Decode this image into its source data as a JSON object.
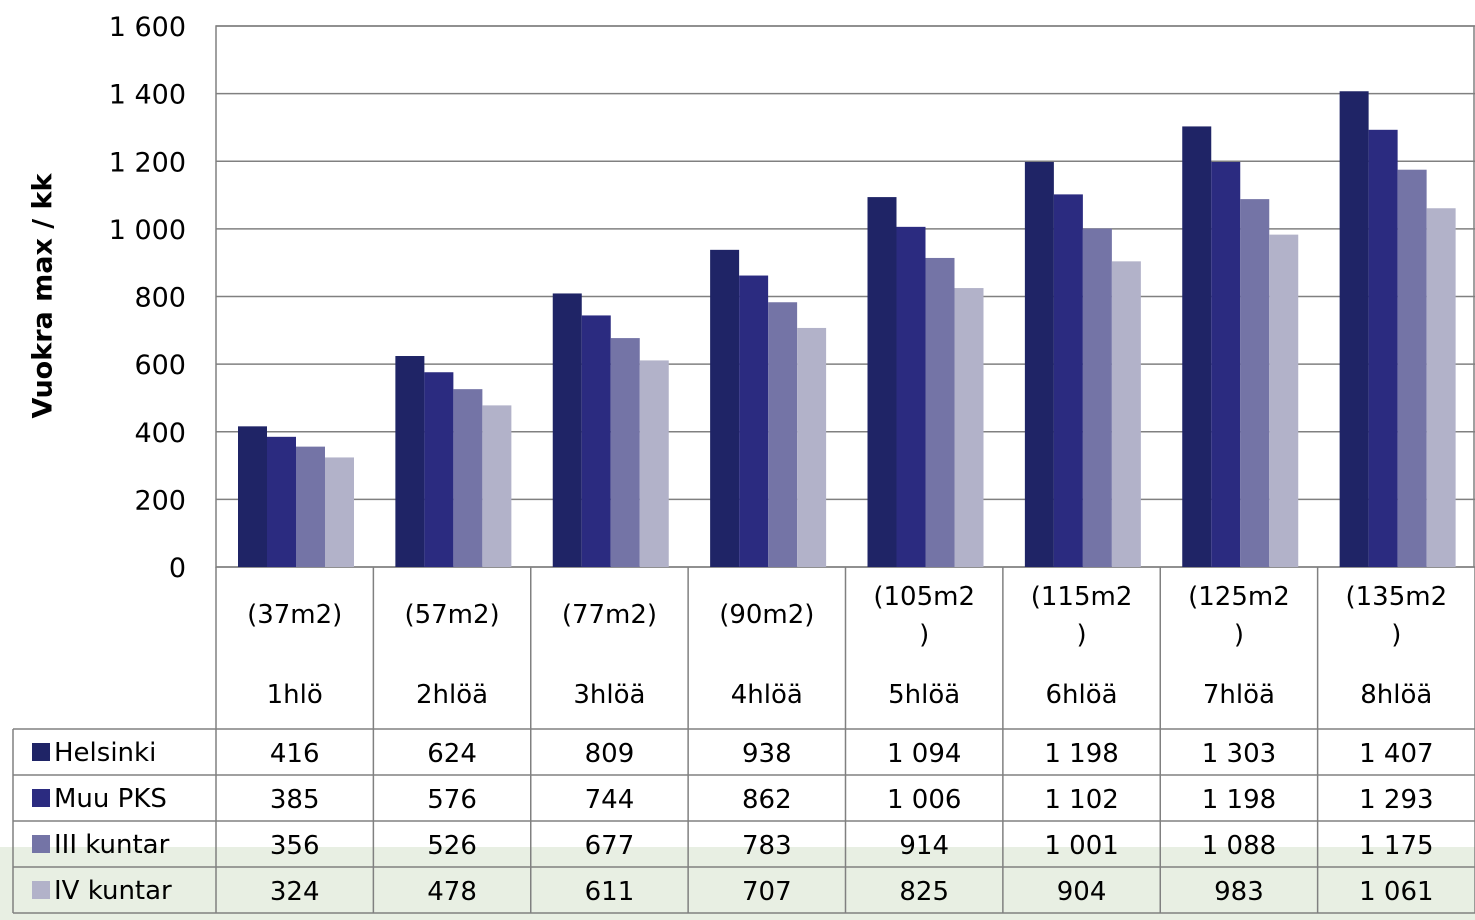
{
  "chart_data": {
    "type": "bar",
    "ylabel": "Vuokra max / kk",
    "ylim": [
      0,
      1600
    ],
    "yticks": [
      0,
      200,
      400,
      600,
      800,
      1000,
      1200,
      1400,
      1600
    ],
    "ytick_labels": [
      "0",
      "200",
      "400",
      "600",
      "800",
      "1 000",
      "1 200",
      "1 400",
      "1 600"
    ],
    "grid": true,
    "legend_position": "data table (bottom-left)",
    "categories": [
      {
        "size": [
          "(37m2)"
        ],
        "persons": "1hlö"
      },
      {
        "size": [
          "(57m2)"
        ],
        "persons": "2hlöä"
      },
      {
        "size": [
          "(77m2)"
        ],
        "persons": "3hlöä"
      },
      {
        "size": [
          "(90m2)"
        ],
        "persons": "4hlöä"
      },
      {
        "size": [
          "(105m2",
          ")"
        ],
        "persons": "5hlöä"
      },
      {
        "size": [
          "(115m2",
          ")"
        ],
        "persons": "6hlöä"
      },
      {
        "size": [
          "(125m2",
          ")"
        ],
        "persons": "7hlöä"
      },
      {
        "size": [
          "(135m2",
          ")"
        ],
        "persons": "8hlöä"
      }
    ],
    "series": [
      {
        "name": "Helsinki",
        "color": "#1f2466",
        "values": [
          416,
          624,
          809,
          938,
          1094,
          1198,
          1303,
          1407
        ],
        "labels": [
          "416",
          "624",
          "809",
          "938",
          "1 094",
          "1 198",
          "1 303",
          "1 407"
        ]
      },
      {
        "name": "Muu PKS",
        "color": "#2b2b80",
        "values": [
          385,
          576,
          744,
          862,
          1006,
          1102,
          1198,
          1293
        ],
        "labels": [
          "385",
          "576",
          "744",
          "862",
          "1 006",
          "1 102",
          "1 198",
          "1 293"
        ]
      },
      {
        "name": "III kuntar",
        "color": "#7474a6",
        "values": [
          356,
          526,
          677,
          783,
          914,
          1001,
          1088,
          1175
        ],
        "labels": [
          "356",
          "526",
          "677",
          "783",
          "914",
          "1 001",
          "1 088",
          "1 175"
        ]
      },
      {
        "name": "IV kuntar",
        "color": "#b2b2c9",
        "values": [
          324,
          478,
          611,
          707,
          825,
          904,
          983,
          1061
        ],
        "labels": [
          "324",
          "478",
          "611",
          "707",
          "825",
          "904",
          "983",
          "1 061"
        ]
      }
    ]
  }
}
